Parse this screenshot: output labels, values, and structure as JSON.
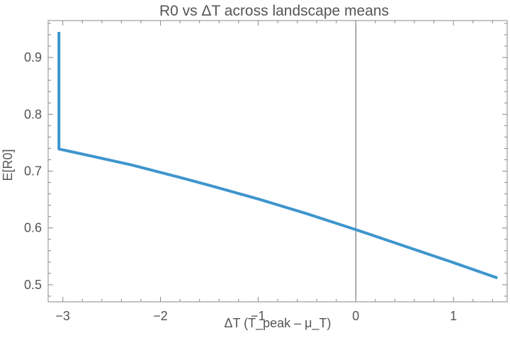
{
  "chart_data": {
    "type": "line",
    "title": "R0 vs ΔT across landscape means",
    "xlabel": "ΔT (T_peak – μ_T)",
    "ylabel": "E[R0]",
    "xlim": [
      -3.15,
      1.55
    ],
    "ylim": [
      0.47,
      0.965
    ],
    "x_ticks": [
      {
        "value": -3,
        "label": "−3"
      },
      {
        "value": -2,
        "label": "−2"
      },
      {
        "value": -1,
        "label": "−1"
      },
      {
        "value": 0,
        "label": "0"
      },
      {
        "value": 1,
        "label": "1"
      }
    ],
    "y_ticks": [
      {
        "value": 0.5,
        "label": "0.5"
      },
      {
        "value": 0.6,
        "label": "0.6"
      },
      {
        "value": 0.7,
        "label": "0.7"
      },
      {
        "value": 0.8,
        "label": "0.8"
      },
      {
        "value": 0.9,
        "label": "0.9"
      }
    ],
    "vertical_reference_line": 0,
    "grid": false,
    "line_color": "#3e95cd",
    "series": [
      {
        "x": [
          -3.04,
          -3.04,
          -2.8,
          -2.3,
          -1.8,
          -1.5,
          -1.0,
          -0.5,
          0.0,
          0.5,
          1.0,
          1.45
        ],
        "y": [
          0.945,
          0.739,
          0.73,
          0.711,
          0.689,
          0.675,
          0.651,
          0.625,
          0.597,
          0.568,
          0.539,
          0.512
        ]
      }
    ]
  }
}
